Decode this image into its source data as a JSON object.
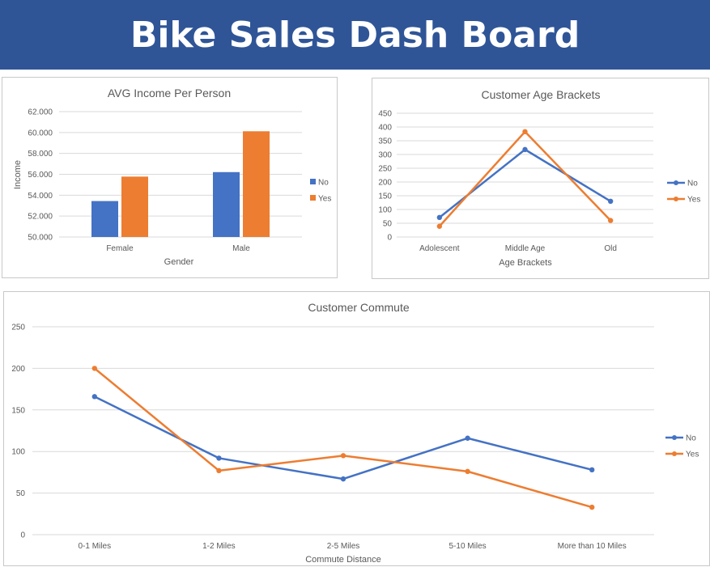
{
  "dashboard": {
    "title": "Bike Sales Dash Board"
  },
  "colors": {
    "no": "#4472c4",
    "yes": "#ed7d31",
    "banner": "#2f5597",
    "grid": "#d9d9d9",
    "text": "#595959"
  },
  "chart_data": [
    {
      "id": "income",
      "type": "bar",
      "title": "AVG Income Per Person",
      "xlabel": "Gender",
      "ylabel": "Income",
      "categories": [
        "Female",
        "Male"
      ],
      "series": [
        {
          "name": "No",
          "values": [
            53440,
            56210
          ]
        },
        {
          "name": "Yes",
          "values": [
            55780,
            60120
          ]
        }
      ],
      "ylim": [
        50000,
        62000
      ],
      "yticks": [
        "50.000",
        "52.000",
        "54.000",
        "56.000",
        "58.000",
        "60.000",
        "62.000"
      ],
      "grid": true,
      "legend": "right"
    },
    {
      "id": "age",
      "type": "line",
      "title": "Customer Age Brackets",
      "xlabel": "Age Brackets",
      "ylabel": "",
      "categories": [
        "Adolescent",
        "Middle Age",
        "Old"
      ],
      "series": [
        {
          "name": "No",
          "values": [
            71,
            318,
            130
          ]
        },
        {
          "name": "Yes",
          "values": [
            39,
            383,
            60
          ]
        }
      ],
      "ylim": [
        0,
        450
      ],
      "yticks": [
        "0",
        "50",
        "100",
        "150",
        "200",
        "250",
        "300",
        "350",
        "400",
        "450"
      ],
      "grid": true,
      "legend": "right"
    },
    {
      "id": "commute",
      "type": "line",
      "title": "Customer Commute",
      "xlabel": "Commute Distance",
      "ylabel": "",
      "categories": [
        "0-1 Miles",
        "1-2 Miles",
        "2-5 Miles",
        "5-10 Miles",
        "More than 10 Miles"
      ],
      "series": [
        {
          "name": "No",
          "values": [
            166,
            92,
            67,
            116,
            78
          ]
        },
        {
          "name": "Yes",
          "values": [
            200,
            77,
            95,
            76,
            33
          ]
        }
      ],
      "ylim": [
        0,
        250
      ],
      "yticks": [
        "0",
        "50",
        "100",
        "150",
        "200",
        "250"
      ],
      "grid": true,
      "legend": "right"
    }
  ]
}
